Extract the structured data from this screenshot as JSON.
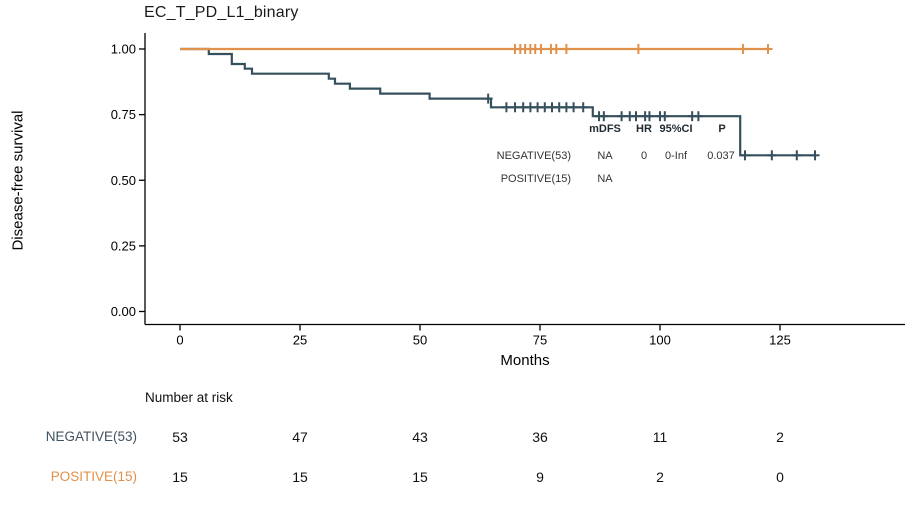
{
  "chart_data": {
    "type": "line",
    "subtype": "kaplan-meier-step",
    "title": "EC_T_PD_L1_binary",
    "xlabel": "Months",
    "ylabel": "Disease-free survival",
    "xlim": [
      0,
      151
    ],
    "ylim": [
      0,
      1
    ],
    "grid": false,
    "legend_position": "none",
    "xtick_values": [
      0,
      25,
      50,
      75,
      100,
      125
    ],
    "xtick_labels": [
      "0",
      "25",
      "50",
      "75",
      "100",
      "125"
    ],
    "ytick_values": [
      1.0,
      0.75,
      0.5,
      0.25,
      0.0
    ],
    "ytick_labels": [
      "1.00",
      "0.75",
      "0.50",
      "0.25",
      "0.00"
    ],
    "axis_color": "#000000",
    "series": [
      {
        "name": "NEGATIVE(53)",
        "color": "#35505C",
        "steps": [
          [
            0,
            1
          ],
          [
            6,
            1
          ],
          [
            6,
            0.981
          ],
          [
            10.8,
            0.981
          ],
          [
            10.8,
            0.943
          ],
          [
            13.5,
            0.943
          ],
          [
            13.5,
            0.925
          ],
          [
            15,
            0.925
          ],
          [
            15,
            0.906
          ],
          [
            31,
            0.906
          ],
          [
            31,
            0.887
          ],
          [
            32.3,
            0.887
          ],
          [
            32.3,
            0.868
          ],
          [
            35.4,
            0.868
          ],
          [
            35.4,
            0.849
          ],
          [
            41.7,
            0.849
          ],
          [
            41.7,
            0.83
          ],
          [
            52,
            0.83
          ],
          [
            52,
            0.811
          ],
          [
            64.8,
            0.811
          ],
          [
            64.8,
            0.778
          ],
          [
            86,
            0.778
          ],
          [
            86,
            0.744
          ],
          [
            116.7,
            0.744
          ],
          [
            116.7,
            0.595
          ],
          [
            132.5,
            0.595
          ]
        ],
        "censors": [
          [
            64.2,
            0.811
          ],
          [
            68,
            0.778
          ],
          [
            69.8,
            0.778
          ],
          [
            71.5,
            0.778
          ],
          [
            73,
            0.778
          ],
          [
            74.5,
            0.778
          ],
          [
            76,
            0.778
          ],
          [
            77.5,
            0.778
          ],
          [
            79,
            0.778
          ],
          [
            80.5,
            0.778
          ],
          [
            82,
            0.778
          ],
          [
            84,
            0.778
          ],
          [
            87.3,
            0.744
          ],
          [
            88.3,
            0.744
          ],
          [
            92,
            0.744
          ],
          [
            93.7,
            0.744
          ],
          [
            95,
            0.744
          ],
          [
            96.9,
            0.744
          ],
          [
            97.8,
            0.744
          ],
          [
            100,
            0.744
          ],
          [
            101,
            0.744
          ],
          [
            106.7,
            0.744
          ],
          [
            108,
            0.744
          ],
          [
            117.7,
            0.595
          ],
          [
            123.3,
            0.595
          ],
          [
            128.5,
            0.595
          ],
          [
            132.3,
            0.595
          ]
        ]
      },
      {
        "name": "POSITIVE(15)",
        "color": "#E0914B",
        "steps": [
          [
            0,
            1
          ],
          [
            123,
            1
          ]
        ],
        "censors": [
          [
            69.8,
            1
          ],
          [
            70.9,
            1
          ],
          [
            71.9,
            1
          ],
          [
            73,
            1
          ],
          [
            74,
            1
          ],
          [
            75.2,
            1
          ],
          [
            77.3,
            1
          ],
          [
            78.4,
            1
          ],
          [
            80.5,
            1
          ],
          [
            95.5,
            1
          ],
          [
            117.3,
            1
          ],
          [
            122.5,
            1
          ]
        ]
      }
    ],
    "annotation_table": {
      "headers": [
        "mDFS",
        "HR",
        "95%CI",
        "P"
      ],
      "rows": [
        {
          "label": "NEGATIVE(53)",
          "mDFS": "NA",
          "HR": "0",
          "CI": "0-Inf",
          "P": "0.037"
        },
        {
          "label": "POSITIVE(15)",
          "mDFS": "NA",
          "HR": "",
          "CI": "",
          "P": ""
        }
      ]
    }
  },
  "risk_table": {
    "title": "Number at risk",
    "timepoints": [
      0,
      25,
      50,
      75,
      100,
      125
    ],
    "rows": [
      {
        "label": "NEGATIVE(53)",
        "color": "#3F5260",
        "values": [
          "53",
          "47",
          "43",
          "36",
          "11",
          "2"
        ]
      },
      {
        "label": "POSITIVE(15)",
        "color": "#E0914B",
        "values": [
          "15",
          "15",
          "15",
          "9",
          "2",
          "0"
        ]
      }
    ]
  }
}
